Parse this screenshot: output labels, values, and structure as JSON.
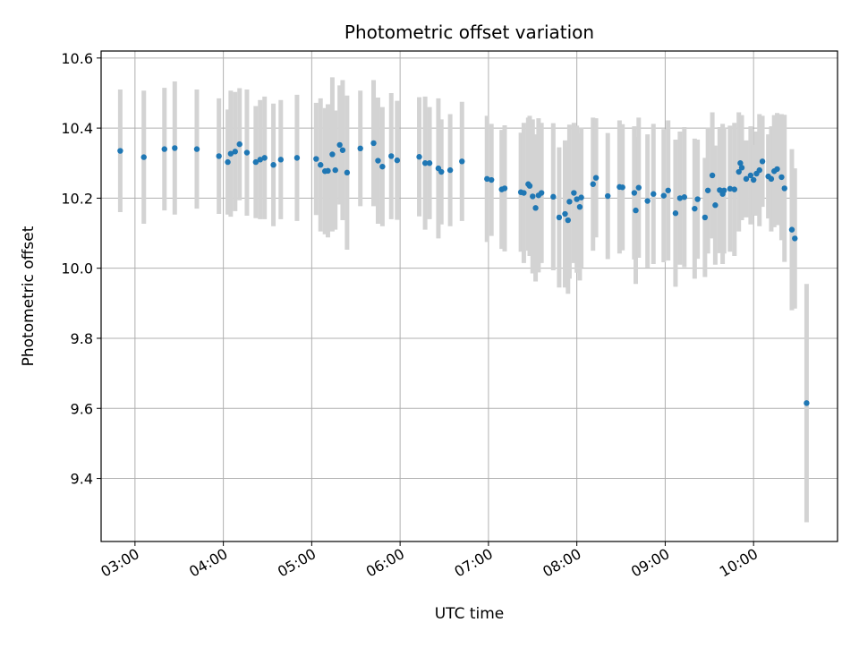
{
  "chart_data": {
    "type": "scatter",
    "title": "Photometric offset variation",
    "xlabel": "UTC time",
    "ylabel": "Photometric offset",
    "xlim": [
      "02:37",
      "10:57"
    ],
    "ylim": [
      9.22,
      10.62
    ],
    "xticks": [
      "03:00",
      "04:00",
      "05:00",
      "06:00",
      "07:00",
      "08:00",
      "09:00",
      "10:00"
    ],
    "yticks": [
      "9.4",
      "9.6",
      "9.8",
      "10.0",
      "10.2",
      "10.4",
      "10.6"
    ],
    "grid": true,
    "marker_color": "#1f77b4",
    "errorbar_color": "#d3d3d3",
    "series": [
      {
        "x": [
          "02:50",
          "03:06",
          "03:20",
          "03:27",
          "03:42",
          "03:57",
          "04:03",
          "04:05",
          "04:08",
          "04:11",
          "04:16",
          "04:22",
          "04:25",
          "04:28",
          "04:34",
          "04:39",
          "04:50",
          "05:03",
          "05:06",
          "05:09",
          "05:11",
          "05:14",
          "05:16",
          "05:19",
          "05:21",
          "05:24",
          "05:33",
          "05:42",
          "05:45",
          "05:48",
          "05:54",
          "05:58",
          "06:13",
          "06:17",
          "06:20",
          "06:26",
          "06:28",
          "06:34",
          "06:42",
          "06:59",
          "07:02",
          "07:09",
          "07:11",
          "07:22",
          "07:24",
          "07:27",
          "07:28",
          "07:30",
          "07:32",
          "07:34",
          "07:36",
          "07:44",
          "07:48",
          "07:52",
          "07:54",
          "07:55",
          "07:58",
          "08:00",
          "08:02",
          "08:03",
          "08:11",
          "08:13",
          "08:21",
          "08:29",
          "08:31",
          "08:39",
          "08:40",
          "08:42",
          "08:48",
          "08:52",
          "08:59",
          "09:02",
          "09:07",
          "09:10",
          "09:13",
          "09:20",
          "09:22",
          "09:27",
          "09:29",
          "09:32",
          "09:34",
          "09:37",
          "09:39",
          "09:40",
          "09:44",
          "09:47",
          "09:50",
          "09:51",
          "09:52",
          "09:55",
          "09:58",
          "10:00",
          "10:02",
          "10:04",
          "10:06",
          "10:10",
          "10:12",
          "10:14",
          "10:16",
          "10:19",
          "10:21",
          "10:26",
          "10:28",
          "10:36"
        ],
        "y": [
          10.335,
          10.317,
          10.34,
          10.343,
          10.34,
          10.32,
          10.303,
          10.327,
          10.333,
          10.354,
          10.33,
          10.303,
          10.31,
          10.315,
          10.295,
          10.31,
          10.315,
          10.312,
          10.295,
          10.277,
          10.278,
          10.325,
          10.28,
          10.352,
          10.337,
          10.273,
          10.342,
          10.357,
          10.307,
          10.29,
          10.32,
          10.308,
          10.318,
          10.3,
          10.3,
          10.285,
          10.275,
          10.28,
          10.305,
          10.255,
          10.252,
          10.225,
          10.228,
          10.217,
          10.215,
          10.24,
          10.235,
          10.205,
          10.172,
          10.208,
          10.215,
          10.204,
          10.145,
          10.155,
          10.137,
          10.19,
          10.215,
          10.197,
          10.175,
          10.202,
          10.24,
          10.258,
          10.206,
          10.232,
          10.231,
          10.215,
          10.165,
          10.23,
          10.192,
          10.212,
          10.207,
          10.222,
          10.157,
          10.2,
          10.203,
          10.17,
          10.197,
          10.145,
          10.222,
          10.265,
          10.18,
          10.223,
          10.212,
          10.222,
          10.227,
          10.225,
          10.275,
          10.3,
          10.287,
          10.255,
          10.265,
          10.252,
          10.27,
          10.28,
          10.305,
          10.262,
          10.255,
          10.277,
          10.283,
          10.26,
          10.228,
          10.11,
          10.085,
          9.615
        ],
        "err": [
          0.175,
          0.19,
          0.175,
          0.19,
          0.17,
          0.165,
          0.15,
          0.18,
          0.17,
          0.16,
          0.18,
          0.16,
          0.17,
          0.175,
          0.175,
          0.17,
          0.18,
          0.16,
          0.19,
          0.18,
          0.19,
          0.22,
          0.17,
          0.17,
          0.2,
          0.22,
          0.165,
          0.18,
          0.18,
          0.17,
          0.18,
          0.17,
          0.17,
          0.19,
          0.16,
          0.2,
          0.15,
          0.16,
          0.17,
          0.18,
          0.16,
          0.17,
          0.18,
          0.17,
          0.2,
          0.19,
          0.2,
          0.22,
          0.21,
          0.22,
          0.2,
          0.21,
          0.2,
          0.21,
          0.21,
          0.22,
          0.2,
          0.21,
          0.21,
          0.2,
          0.19,
          0.17,
          0.18,
          0.19,
          0.18,
          0.19,
          0.21,
          0.2,
          0.19,
          0.2,
          0.19,
          0.2,
          0.21,
          0.19,
          0.2,
          0.2,
          0.17,
          0.17,
          0.18,
          0.18,
          0.17,
          0.18,
          0.2,
          0.18,
          0.18,
          0.19,
          0.17,
          0.13,
          0.15,
          0.11,
          0.14,
          0.1,
          0.12,
          0.16,
          0.13,
          0.12,
          0.15,
          0.16,
          0.16,
          0.18,
          0.21,
          0.23,
          0.2,
          0.34
        ]
      }
    ]
  }
}
